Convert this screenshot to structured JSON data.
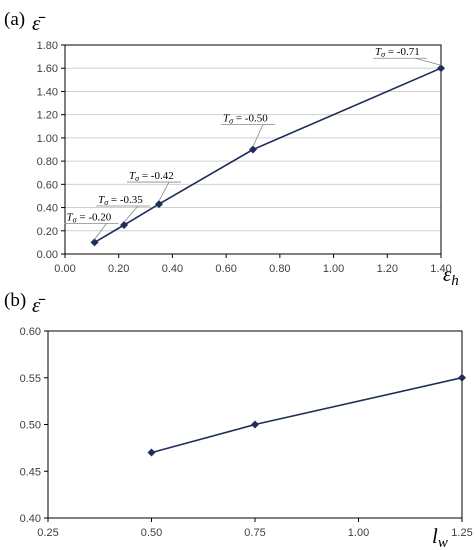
{
  "colors": {
    "series": "#1f2d5a",
    "grid": "#d0d0d0",
    "frame": "#000000",
    "callout_border": "#8a8a8a"
  },
  "chart_data": [
    {
      "panel": "(a)",
      "type": "line",
      "ylabel": "ε̄",
      "xlabel": "εh",
      "xlim": [
        0,
        1.4
      ],
      "ylim": [
        0,
        1.8
      ],
      "xticks": [
        "0.00",
        "0.20",
        "0.40",
        "0.60",
        "0.80",
        "1.00",
        "1.20",
        "1.40"
      ],
      "yticks": [
        "0.00",
        "0.20",
        "0.40",
        "0.60",
        "0.80",
        "1.00",
        "1.20",
        "1.40",
        "1.60",
        "1.80"
      ],
      "grid": "horizontal",
      "marker": "diamond",
      "series": [
        {
          "x": [
            0.11,
            0.22,
            0.35,
            0.7,
            1.4
          ],
          "y": [
            0.1,
            0.25,
            0.43,
            0.9,
            1.6
          ]
        }
      ],
      "annotations": [
        {
          "t": "T",
          "sub": "σ",
          "rest": " = -0.20"
        },
        {
          "t": "T",
          "sub": "σ",
          "rest": " = -0.35"
        },
        {
          "t": "T",
          "sub": "σ",
          "rest": " = -0.42"
        },
        {
          "t": "T",
          "sub": "σ",
          "rest": " = -0.50"
        },
        {
          "t": "T",
          "sub": "σ",
          "rest": " = -0.71"
        }
      ]
    },
    {
      "panel": "(b)",
      "type": "line",
      "ylabel": "ε̄",
      "xlabel": "lw",
      "xlim": [
        0.25,
        1.25
      ],
      "ylim": [
        0.4,
        0.6
      ],
      "xticks": [
        "0.25",
        "0.50",
        "0.75",
        "1.00",
        "1.25"
      ],
      "yticks": [
        "0.40",
        "0.45",
        "0.50",
        "0.55",
        "0.60"
      ],
      "grid": "none",
      "marker": "diamond",
      "series": [
        {
          "x": [
            0.5,
            0.75,
            1.25
          ],
          "y": [
            0.47,
            0.5,
            0.55
          ]
        }
      ]
    }
  ]
}
